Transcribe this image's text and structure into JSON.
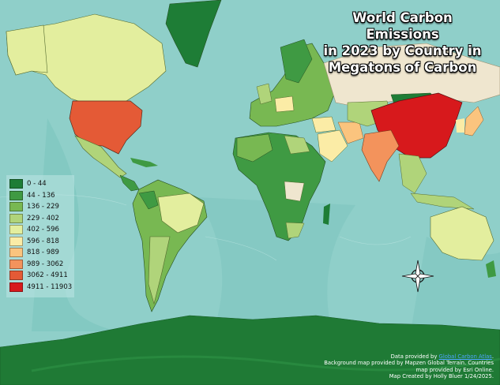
{
  "title": {
    "line1": "World Carbon Emissions",
    "line2": "in 2023 by Country in",
    "line3": "Megatons of Carbon"
  },
  "colors": {
    "ocean": "#8fcfc9",
    "ocean_deep": "#6cbab5",
    "ice": "#1f7a35",
    "unknown_land": "#efe6cf"
  },
  "legend": {
    "items": [
      {
        "label": "0 - 44",
        "color": "#1e7d36"
      },
      {
        "label": "44 - 136",
        "color": "#3f9a43"
      },
      {
        "label": "136 - 229",
        "color": "#78b852"
      },
      {
        "label": "229 - 402",
        "color": "#b0d47a"
      },
      {
        "label": "402 - 596",
        "color": "#e3ee9e"
      },
      {
        "label": "596 - 818",
        "color": "#fbeca6"
      },
      {
        "label": "818 - 989",
        "color": "#fbc47e"
      },
      {
        "label": "989 - 3062",
        "color": "#f3935c"
      },
      {
        "label": "3062 - 4911",
        "color": "#e45a36"
      },
      {
        "label": "4911 - 11903",
        "color": "#d7191c"
      }
    ]
  },
  "credits": {
    "data_prefix": "Data provided by ",
    "data_link": "Global Carbon Atlas",
    "data_suffix": ".",
    "line2": "Background map provided by Mapzen Global Terrain. Countries",
    "line3": "map provided by Esri Online.",
    "line4": "Map Created by Holly Bluer 1/24/2025."
  },
  "compass": {
    "icon": "compass-rose-icon"
  }
}
